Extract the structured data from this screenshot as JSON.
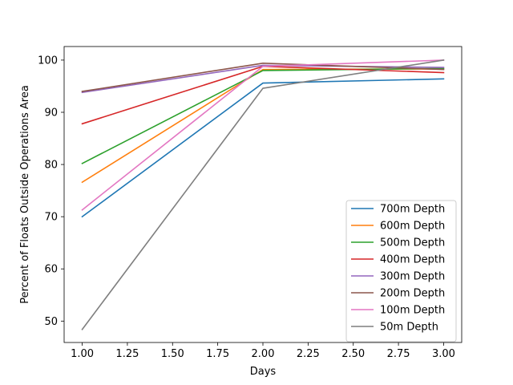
{
  "chart_data": {
    "type": "line",
    "title": "",
    "xlabel": "Days",
    "ylabel": "Percent of Floats Outside Operations Area",
    "xlim": [
      0.9,
      3.1
    ],
    "ylim": [
      45.9,
      102.6
    ],
    "x": [
      1,
      2,
      3
    ],
    "x_ticks": [
      1.0,
      1.25,
      1.5,
      1.75,
      2.0,
      2.25,
      2.5,
      2.75,
      3.0
    ],
    "x_tick_labels": [
      "1.00",
      "1.25",
      "1.50",
      "1.75",
      "2.00",
      "2.25",
      "2.50",
      "2.75",
      "3.00"
    ],
    "y_ticks": [
      50,
      60,
      70,
      80,
      90,
      100
    ],
    "y_tick_labels": [
      "50",
      "60",
      "70",
      "80",
      "90",
      "100"
    ],
    "grid": false,
    "legend_position": "lower-right",
    "series": [
      {
        "name": "700m Depth",
        "color": "#1f77b4",
        "values": [
          70.0,
          95.6,
          96.4
        ]
      },
      {
        "name": "600m Depth",
        "color": "#ff7f0e",
        "values": [
          76.6,
          98.2,
          98.3
        ]
      },
      {
        "name": "500m Depth",
        "color": "#2ca02c",
        "values": [
          80.2,
          98.0,
          98.4
        ]
      },
      {
        "name": "400m Depth",
        "color": "#d62728",
        "values": [
          87.8,
          98.8,
          97.6
        ]
      },
      {
        "name": "300m Depth",
        "color": "#9467bd",
        "values": [
          93.8,
          99.0,
          98.6
        ]
      },
      {
        "name": "200m Depth",
        "color": "#8c564b",
        "values": [
          94.0,
          99.4,
          98.2
        ]
      },
      {
        "name": "100m Depth",
        "color": "#e377c2",
        "values": [
          71.3,
          98.8,
          100.0
        ]
      },
      {
        "name": "50m Depth",
        "color": "#7f7f7f",
        "values": [
          48.4,
          94.6,
          100.0
        ]
      }
    ]
  }
}
